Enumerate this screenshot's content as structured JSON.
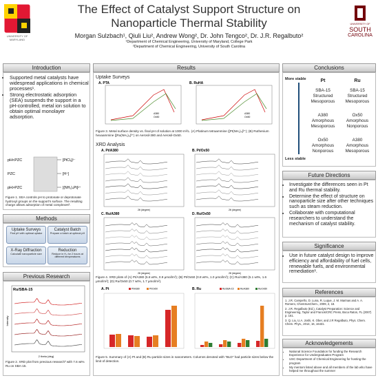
{
  "header": {
    "title": "The Effect of Catalyst Support Structure on Nanoparticle Thermal Stability",
    "authors": "Morgan Sulzbach¹, Qiuli Liu², Andrew Wong², Dr. John Tengco², Dr. J.R. Regalbuto²",
    "affiliations": [
      "¹Department of Chemical Engineering, University of Maryland, College Park",
      "²Department of Chemical Engineering, University of South Carolina"
    ],
    "logo_left": "UNIVERSITY OF MARYLAND",
    "logo_right": [
      "UNIVERSITY OF",
      "SOUTH",
      "CAROLINA"
    ]
  },
  "introduction": {
    "heading": "Introduction",
    "bullets": [
      "Supported metal catalysts have widespread applications in chemical processes¹.",
      "Strong electrostatic adsorption (SEA) suspends the support in a pH-controlled, metal ion solution to obtain optimal monolayer adsorption."
    ],
    "diagram": {
      "left": [
        "pH<PZC",
        "PZC",
        "pH>PZC"
      ],
      "right": [
        "[PtCl₆]²⁻",
        "[H⁺]",
        "[(NH₃)₄Pt]²⁺"
      ]
    },
    "caption": "Figure 1. SEA controls pH to protonate or deprotonate hydroxyl groups on the support's surface. The resulting charge allows adsorption of metal complexes³."
  },
  "methods": {
    "heading": "Methods",
    "boxes": [
      {
        "title": "Uptake Surveys",
        "text": "Find pH with optimal uptake"
      },
      {
        "title": "Catalyst Batch",
        "text": "Prepare a batch at optimal pH"
      },
      {
        "title": "X-Ray Diffraction",
        "text": "Calculate nanoparticle size"
      },
      {
        "title": "Reduction",
        "text": "Reduce in H₂ for 2 hours at different temperatures"
      }
    ]
  },
  "previous_research": {
    "heading": "Previous Research",
    "plot_title": "Ru/SBA-15",
    "caption": "Figure 2. XRD plot from previous research³ with 7.6 wt% Ru on SBA-15.",
    "x_label": "2 theta (deg)",
    "y_label": "Intensity"
  },
  "results": {
    "heading": "Results",
    "uptake_title": "Uptake Surveys",
    "uptake_panels": [
      "A. PTA",
      "B. RuHA"
    ],
    "uptake_legend": [
      "A380",
      "Ox50"
    ],
    "fig3_caption": "Figure 3. Metal surface density vs. final pH of solution at 1000 m²/L. (A) Platinum tetraammine ([Pt(NH₃)₄]²⁺); (B) Ruthenium hexaammine ([Ru(NH₃)₆]³⁺) on Aerosil-380 and Aerosil-Ox50.",
    "xrd_title": "XRD Analysis",
    "xrd_panels": [
      "A. Pt/A380",
      "B. Pt/Ox50",
      "C. Ru/A380",
      "D. Ru/Ox50"
    ],
    "xrd_x_label": "2θ (degree)",
    "fig4_caption": "Figure 4. XRD plots of (A) Pt/A380 (5.6 wt%, 0.9 μmol/m²); (B) Pt/Ox50 (0.8 wt%, 1.0 μmol/m²); (C) Ru/A380 (5.1 wt%, 1.6 μmol/m²); (D) Ru/Ox50 (0.7 wt%, 1.7 μmol/m²).",
    "bar_panels": [
      "A. Pt",
      "B. Ru"
    ],
    "bar_legend_pt": [
      "Pt/A380",
      "Pt/Ox50"
    ],
    "bar_legend_ru": [
      "Ru/SBA-15",
      "Ru/A380",
      "Ru/Ox50"
    ],
    "fig5_caption": "Figure 5. Summary of (A) Pt and (B) Ru particle sizes in nanometers. Columns denoted with \"BLD\" had particle sizes below the limit of detection."
  },
  "conclusions": {
    "heading": "Conclusions",
    "top": "More stable",
    "bottom": "Less stable",
    "columns": [
      "Pt",
      "Ru"
    ],
    "rows": [
      [
        "SBA-15 Structured Mesoporous",
        "SBA-15 Structured Mesoporous"
      ],
      [
        "A380 Amorphous Mesoporous",
        "Ox50 Amorphous Nonporous"
      ],
      [
        "Ox50 Amorphous Nonporous",
        "A380 Amorphous Mesoporous"
      ]
    ]
  },
  "future": {
    "heading": "Future Directions",
    "bullets": [
      "Investigate the differences seen in Pt and Ru thermal stability.",
      "Determine the effect of structure on nanoparticle size after other techniques such as steam reduction.",
      "Collaborate with computational researchers to understand the mechanism of catalyst stability."
    ]
  },
  "significance": {
    "heading": "Significance",
    "bullets": [
      "Use in future catalyst design to improve efficiency and affordability of fuel cells, renewable fuels, and environmental remediation¹."
    ]
  },
  "references": {
    "heading": "References",
    "items": [
      "1. J.R. Campeño, D. Luna, R. Luque, J. M. Marinas and A. A. Romero, ChemSusChem., 2009, 2, 18.",
      "2. J.R. Regalbuto (Ed.), Catalyst Preparation: Science and Engineering, Taylor and Francis/CRC Press, Boca Raton, FL (2007) p. 161.",
      "3. Q. Liu, U.A. Joshi, K. Ober, and J.R Regalbuto, Phys. Chem. Chem. Phys., 2014, 16, 16431."
    ]
  },
  "acknowledgments": {
    "heading": "Acknowledgements",
    "items": [
      "National Science Foundation for funding the Research Experience for Undergraduates Program",
      "USC Department of Chemical Engineering for hosting the program",
      "My mentors listed above and all members of the lab who have helped me throughout the summer"
    ]
  }
}
